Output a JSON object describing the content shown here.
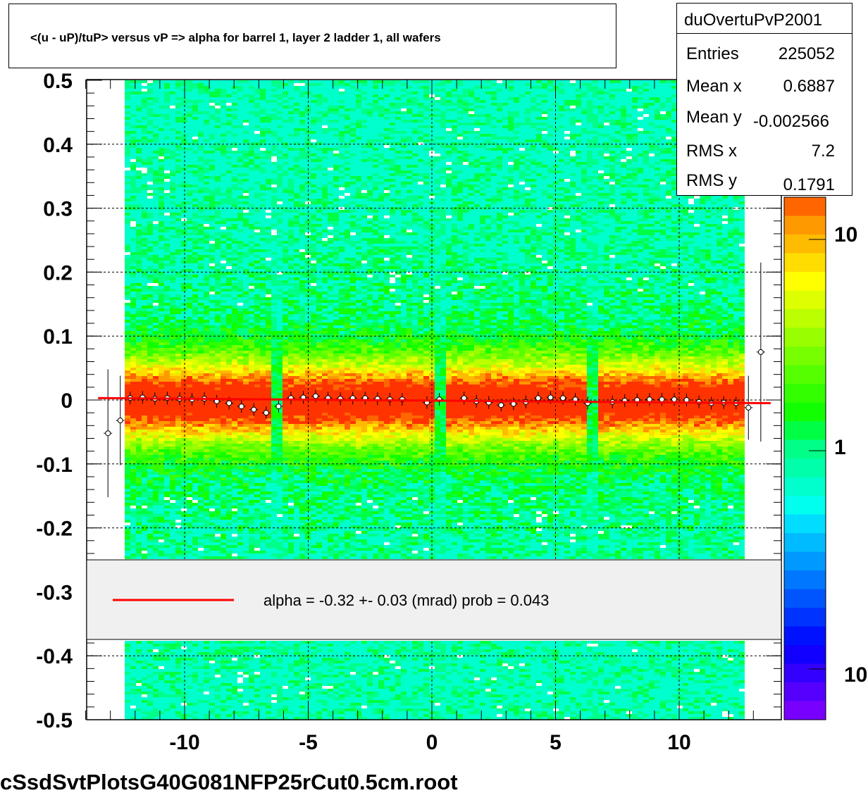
{
  "title": "<(u - uP)/tuP> versus   vP => alpha for barrel 1, layer 2 ladder 1, all wafers",
  "footer": "cSsdSvtPlotsG40G081NFP25rCut0.5cm.root",
  "stats": {
    "name": "duOvertuPvP2001",
    "rows": [
      {
        "key": "Entries",
        "value": "225052"
      },
      {
        "key": "Mean x",
        "value": "0.6887"
      },
      {
        "key": "Mean y",
        "value": "-0.002566"
      },
      {
        "key": "RMS x",
        "value": "7.2"
      },
      {
        "key": "RMS y",
        "value": "0.1791"
      }
    ]
  },
  "legend": {
    "text": "alpha =   -0.32 +-  0.03 (mrad) prob = 0.043",
    "line_color": "#ff0000"
  },
  "colors": {
    "fit_line": "#ff0000",
    "legend_bg": "#f0f0f0"
  },
  "chart_data": {
    "type": "heatmap",
    "title": "<(u - uP)/tuP> versus   vP => alpha for barrel 1, layer 2 ladder 1, all wafers",
    "xlabel": "",
    "ylabel": "",
    "xlim": [
      -14.5,
      14
    ],
    "ylim": [
      -0.5,
      0.5
    ],
    "x_ticks": [
      -10,
      -5,
      0,
      5,
      10
    ],
    "y_ticks": [
      0.5,
      0.4,
      0.3,
      0.2,
      0.1,
      0,
      -0.1,
      -0.2,
      -0.3,
      -0.4,
      -0.5
    ],
    "z_scale": "log",
    "z_tick_labels": [
      "10",
      "1",
      "10"
    ],
    "grid": true,
    "fit_line": {
      "x": [
        -13.5,
        13.7
      ],
      "y": [
        0.003,
        -0.005
      ]
    },
    "profile_points": {
      "x": [
        -13.1,
        -12.6,
        -12.2,
        -11.7,
        -11.2,
        -10.7,
        -10.2,
        -9.7,
        -9.2,
        -8.7,
        -8.2,
        -7.7,
        -7.2,
        -6.7,
        -6.2,
        -5.7,
        -5.2,
        -4.7,
        -4.2,
        -3.7,
        -3.2,
        -2.7,
        -2.2,
        -1.7,
        -1.2,
        -0.2,
        0.3,
        1.3,
        1.8,
        2.3,
        2.8,
        3.3,
        3.8,
        4.3,
        4.8,
        5.3,
        5.8,
        6.3,
        7.3,
        7.8,
        8.3,
        8.8,
        9.3,
        9.8,
        10.3,
        10.8,
        11.3,
        11.8,
        12.3,
        12.8,
        13.3
      ],
      "y": [
        -0.052,
        -0.032,
        0.003,
        0.004,
        0.002,
        0.003,
        0.002,
        0.001,
        0.002,
        -0.002,
        -0.005,
        -0.01,
        -0.015,
        -0.02,
        -0.01,
        0.003,
        0.004,
        0.006,
        0.003,
        0.002,
        0.003,
        0.003,
        0.002,
        0.001,
        0.001,
        -0.004,
        0.001,
        0.003,
        -0.002,
        -0.004,
        -0.008,
        -0.006,
        -0.003,
        0.003,
        0.004,
        0.003,
        0.001,
        -0.005,
        -0.003,
        -0.001,
        0.0,
        0.001,
        0.001,
        0.001,
        0.0,
        -0.003,
        -0.005,
        -0.004,
        -0.005,
        -0.012,
        0.075
      ],
      "err": [
        0.1,
        0.07,
        0.01,
        0.01,
        0.01,
        0.01,
        0.01,
        0.01,
        0.01,
        0.01,
        0.01,
        0.01,
        0.01,
        0.01,
        0.01,
        0.01,
        0.01,
        0.01,
        0.01,
        0.01,
        0.01,
        0.01,
        0.01,
        0.01,
        0.01,
        0.01,
        0.01,
        0.01,
        0.01,
        0.01,
        0.01,
        0.01,
        0.01,
        0.01,
        0.01,
        0.01,
        0.01,
        0.01,
        0.01,
        0.01,
        0.01,
        0.01,
        0.01,
        0.01,
        0.01,
        0.01,
        0.01,
        0.01,
        0.01,
        0.05,
        0.14
      ]
    }
  }
}
